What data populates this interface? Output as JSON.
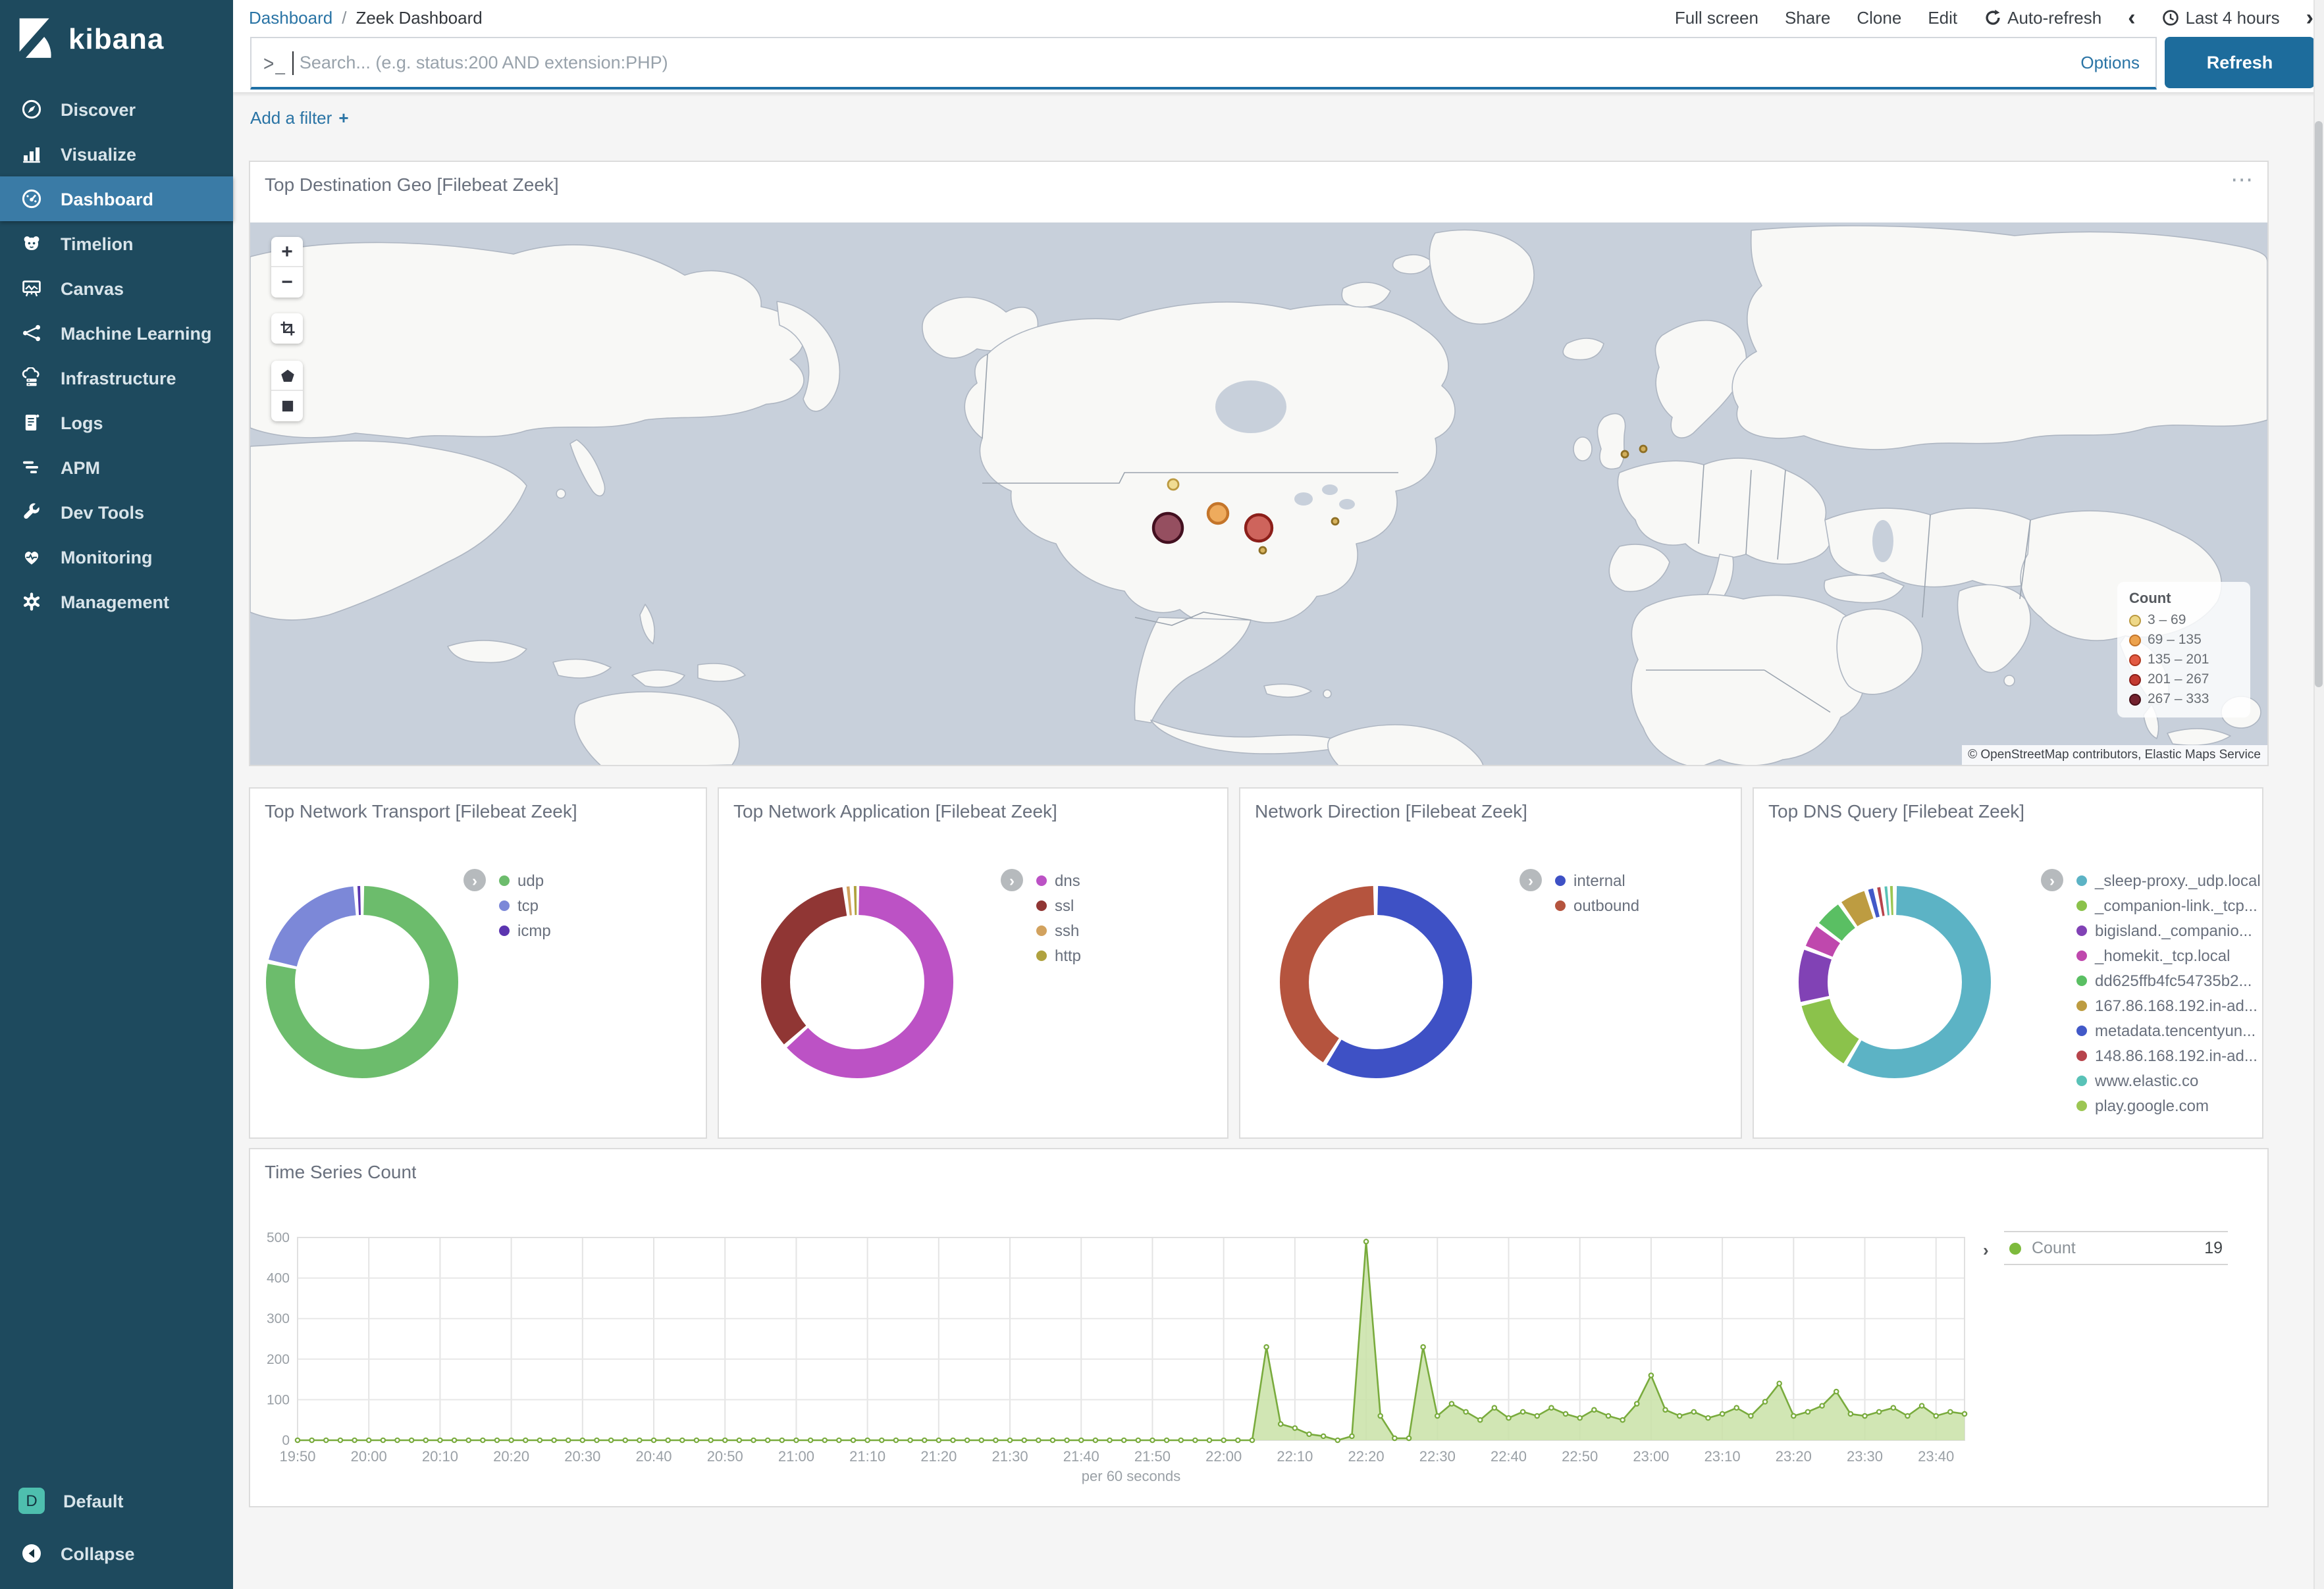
{
  "sidebar": {
    "logo": "kibana",
    "items": [
      {
        "name": "discover",
        "label": "Discover",
        "active": false
      },
      {
        "name": "visualize",
        "label": "Visualize",
        "active": false
      },
      {
        "name": "dashboard",
        "label": "Dashboard",
        "active": true
      },
      {
        "name": "timelion",
        "label": "Timelion",
        "active": false
      },
      {
        "name": "canvas",
        "label": "Canvas",
        "active": false
      },
      {
        "name": "machine-learning",
        "label": "Machine Learning",
        "active": false
      },
      {
        "name": "infrastructure",
        "label": "Infrastructure",
        "active": false
      },
      {
        "name": "logs",
        "label": "Logs",
        "active": false
      },
      {
        "name": "apm",
        "label": "APM",
        "active": false
      },
      {
        "name": "dev-tools",
        "label": "Dev Tools",
        "active": false
      },
      {
        "name": "monitoring",
        "label": "Monitoring",
        "active": false
      },
      {
        "name": "management",
        "label": "Management",
        "active": false
      }
    ],
    "space_badge": {
      "initial": "D",
      "label": "Default",
      "color": "#4ebfae"
    },
    "collapse_label": "Collapse"
  },
  "topbar": {
    "breadcrumb": {
      "parent": "Dashboard",
      "separator": "/",
      "current": "Zeek Dashboard"
    },
    "actions": [
      "Full screen",
      "Share",
      "Clone",
      "Edit"
    ],
    "auto_refresh_label": "Auto-refresh",
    "time_range_label": "Last 4 hours",
    "prev": "‹",
    "next": "›"
  },
  "search": {
    "placeholder": "Search... (e.g. status:200 AND extension:PHP)",
    "options_label": "Options",
    "refresh_label": "Refresh"
  },
  "filters": {
    "add_label": "Add a filter",
    "plus_icon": "+"
  },
  "map_panel": {
    "title": "Top Destination Geo [Filebeat Zeek]",
    "menu_icon": "⋯",
    "zoom_in": "+",
    "zoom_out": "−",
    "legend_title": "Count",
    "legend_buckets": [
      {
        "range": "3 – 69",
        "fill": "#eed888",
        "stroke": "#bb9940"
      },
      {
        "range": "69 – 135",
        "fill": "#eca24d",
        "stroke": "#c4752a"
      },
      {
        "range": "135 – 201",
        "fill": "#e25a43",
        "stroke": "#b1381f"
      },
      {
        "range": "201 – 267",
        "fill": "#c33a31",
        "stroke": "#8c1f1a"
      },
      {
        "range": "267 – 333",
        "fill": "#73212e",
        "stroke": "#471019"
      }
    ],
    "attribution": "© OpenStreetMap contributors, Elastic Maps Service",
    "points": [
      {
        "x": 701,
        "y": 199,
        "r": 4,
        "fill": "#eed888",
        "stroke": "#bb9940"
      },
      {
        "x": 735,
        "y": 221,
        "r": 7.5,
        "fill": "#eca24d",
        "stroke": "#c4752a"
      },
      {
        "x": 697,
        "y": 232,
        "r": 11,
        "fill": "#8a3c50",
        "stroke": "#431020"
      },
      {
        "x": 766,
        "y": 232,
        "r": 10,
        "fill": "#c9534b",
        "stroke": "#8c1f1a"
      },
      {
        "x": 824,
        "y": 227,
        "r": 2.5,
        "fill": "#d3ab4e",
        "stroke": "#8e6f25"
      },
      {
        "x": 769,
        "y": 249,
        "r": 2.5,
        "fill": "#d3ab4e",
        "stroke": "#8e6f25"
      },
      {
        "x": 1044,
        "y": 176,
        "r": 2.5,
        "fill": "#d3ab4e",
        "stroke": "#8e6f25"
      },
      {
        "x": 1058,
        "y": 172,
        "r": 2.5,
        "fill": "#d3ab4e",
        "stroke": "#8e6f25"
      }
    ]
  },
  "chart_data": [
    {
      "type": "pie",
      "title": "Top Network Transport [Filebeat Zeek]",
      "labels": [
        "udp",
        "tcp",
        "icmp"
      ],
      "values": [
        78.5,
        20.5,
        1.0
      ],
      "colors": [
        "#6cbc6c",
        "#7c88d8",
        "#5b35b0"
      ],
      "legend_position": "right"
    },
    {
      "type": "pie",
      "title": "Top Network Application [Filebeat Zeek]",
      "labels": [
        "dns",
        "ssl",
        "ssh",
        "http"
      ],
      "values": [
        63.5,
        34.5,
        1.2,
        0.8
      ],
      "colors": [
        "#bc52c5",
        "#903634",
        "#d2a25e",
        "#b0a23f"
      ],
      "legend_position": "right"
    },
    {
      "type": "pie",
      "title": "Network Direction [Filebeat Zeek]",
      "labels": [
        "internal",
        "outbound"
      ],
      "values": [
        59,
        41
      ],
      "colors": [
        "#3e51c5",
        "#b5543e"
      ],
      "legend_position": "right"
    },
    {
      "type": "pie",
      "title": "Top DNS Query [Filebeat Zeek]",
      "labels": [
        "_sleep-proxy._udp.local",
        "_companion-link._tcp...",
        "bigisland._companio...",
        "_homekit._tcp.local",
        "dd625ffb4fc54735b2...",
        "167.86.168.192.in-ad...",
        "metadata.tencentyun...",
        "148.86.168.192.in-ad...",
        "www.elastic.co",
        "play.google.com"
      ],
      "values": [
        57.5,
        12.5,
        9.3,
        4.3,
        5.0,
        4.8,
        1.5,
        1.2,
        0.9,
        1.0
      ],
      "colors": [
        "#5cb3c5",
        "#8bc24b",
        "#8142b5",
        "#bf48ad",
        "#5abf63",
        "#bd9c41",
        "#4259c8",
        "#b7444c",
        "#59c2b7",
        "#9cc653"
      ],
      "legend_position": "right"
    },
    {
      "type": "area",
      "title": "Time Series Count",
      "xlabel": "per 60 seconds",
      "ylim": [
        0,
        500
      ],
      "yticks": [
        0,
        100,
        200,
        300,
        400,
        500
      ],
      "x_start": "19:50",
      "x_interval_minutes": 2,
      "x_tick_labels": [
        "19:50",
        "20:00",
        "20:10",
        "20:20",
        "20:30",
        "20:40",
        "20:50",
        "21:00",
        "21:10",
        "21:20",
        "21:30",
        "21:40",
        "21:50",
        "22:00",
        "22:10",
        "22:20",
        "22:30",
        "22:40",
        "22:50",
        "23:00",
        "23:10",
        "23:20",
        "23:30",
        "23:40"
      ],
      "values": [
        0,
        0,
        0,
        0,
        0,
        0,
        0,
        0,
        0,
        0,
        0,
        0,
        0,
        0,
        0,
        0,
        0,
        0,
        0,
        0,
        0,
        0,
        0,
        0,
        0,
        0,
        0,
        0,
        0,
        0,
        0,
        0,
        0,
        0,
        0,
        0,
        0,
        0,
        0,
        0,
        0,
        0,
        0,
        0,
        0,
        0,
        0,
        0,
        0,
        0,
        0,
        0,
        0,
        0,
        0,
        0,
        0,
        0,
        0,
        0,
        0,
        0,
        0,
        0,
        0,
        0,
        0,
        0,
        230,
        40,
        30,
        15,
        10,
        0,
        10,
        490,
        60,
        5,
        5,
        230,
        60,
        90,
        70,
        50,
        80,
        55,
        70,
        60,
        80,
        65,
        55,
        75,
        60,
        50,
        90,
        160,
        75,
        60,
        70,
        55,
        65,
        80,
        60,
        95,
        140,
        60,
        70,
        85,
        120,
        65,
        60,
        70,
        80,
        60,
        85,
        60,
        70,
        65
      ],
      "legend": {
        "name": "Count",
        "value": "19",
        "color": "#7dba3c"
      },
      "line_color": "#79ab3d",
      "fill_color": "#c9e2a7",
      "grid": true
    }
  ]
}
